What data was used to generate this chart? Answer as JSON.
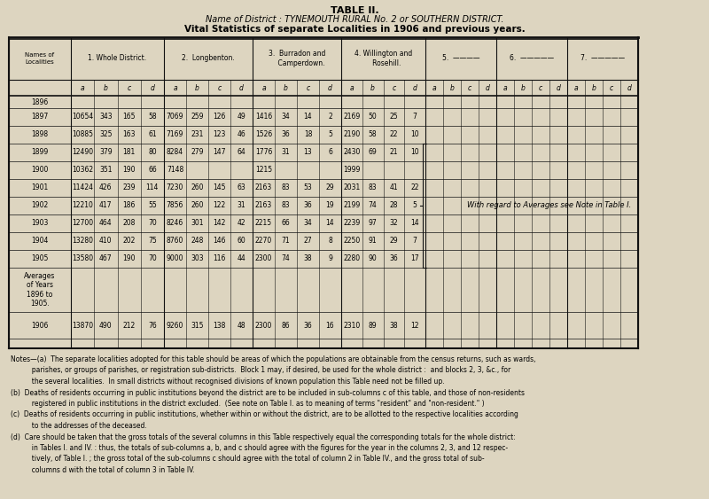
{
  "title": "TABLE II.",
  "subtitle_italic": "Name of District : TYNEMOUTH RURAL No. 2 or SOUTHERN DISTRICT.",
  "subtitle_bold": "Vital Statistics of separate Localities in 1906 and previous years.",
  "bg_color": "#ddd5c0",
  "data": {
    "1896": {
      "whole": [
        "",
        "",
        "",
        ""
      ],
      "longbenton": [
        "",
        "",
        "",
        ""
      ],
      "burradon": [
        "",
        "",
        "",
        ""
      ],
      "willington": [
        "",
        "",
        "",
        ""
      ]
    },
    "1897": {
      "whole": [
        "10654",
        "343",
        "165",
        "58"
      ],
      "longbenton": [
        "7069",
        "259",
        "126",
        "49"
      ],
      "burradon": [
        "1416",
        "34",
        "14",
        "2"
      ],
      "willington": [
        "2169",
        "50",
        "25",
        "7"
      ]
    },
    "1898": {
      "whole": [
        "10885",
        "325",
        "163",
        "61"
      ],
      "longbenton": [
        "7169",
        "231",
        "123",
        "46"
      ],
      "burradon": [
        "1526",
        "36",
        "18",
        "5"
      ],
      "willington": [
        "2190",
        "58",
        "22",
        "10"
      ]
    },
    "1899": {
      "whole": [
        "12490",
        "379",
        "181",
        "80"
      ],
      "longbenton": [
        "8284",
        "279",
        "147",
        "64"
      ],
      "burradon": [
        "1776",
        "31",
        "13",
        "6"
      ],
      "willington": [
        "2430",
        "69",
        "21",
        "10"
      ]
    },
    "1900": {
      "whole": [
        "10362",
        "351",
        "190",
        "66"
      ],
      "longbenton": [
        "7148",
        "",
        "",
        ""
      ],
      "burradon": [
        "1215",
        "",
        "",
        ""
      ],
      "willington": [
        "1999",
        "",
        "",
        ""
      ]
    },
    "1901": {
      "whole": [
        "11424",
        "426",
        "239",
        "114"
      ],
      "longbenton": [
        "7230",
        "260",
        "145",
        "63"
      ],
      "burradon": [
        "2163",
        "83",
        "53",
        "29"
      ],
      "willington": [
        "2031",
        "83",
        "41",
        "22"
      ]
    },
    "1902": {
      "whole": [
        "12210",
        "417",
        "186",
        "55"
      ],
      "longbenton": [
        "7856",
        "260",
        "122",
        "31"
      ],
      "burradon": [
        "2163",
        "83",
        "36",
        "19"
      ],
      "willington": [
        "2199",
        "74",
        "28",
        "5"
      ]
    },
    "1903": {
      "whole": [
        "12700",
        "464",
        "208",
        "70"
      ],
      "longbenton": [
        "8246",
        "301",
        "142",
        "42"
      ],
      "burradon": [
        "2215",
        "66",
        "34",
        "14"
      ],
      "willington": [
        "2239",
        "97",
        "32",
        "14"
      ]
    },
    "1904": {
      "whole": [
        "13280",
        "410",
        "202",
        "75"
      ],
      "longbenton": [
        "8760",
        "248",
        "146",
        "60"
      ],
      "burradon": [
        "2270",
        "71",
        "27",
        "8"
      ],
      "willington": [
        "2250",
        "91",
        "29",
        "7"
      ]
    },
    "1905": {
      "whole": [
        "13580",
        "467",
        "190",
        "70"
      ],
      "longbenton": [
        "9000",
        "303",
        "116",
        "44"
      ],
      "burradon": [
        "2300",
        "74",
        "38",
        "9"
      ],
      "willington": [
        "2280",
        "90",
        "36",
        "17"
      ]
    },
    "averages": {
      "whole": [
        "",
        "",
        "",
        ""
      ],
      "longbenton": [
        "",
        "",
        "",
        ""
      ],
      "burradon": [
        "",
        "",
        "",
        ""
      ],
      "willington": [
        "",
        "",
        "",
        ""
      ]
    },
    "1906": {
      "whole": [
        "13870",
        "490",
        "212",
        "76"
      ],
      "longbenton": [
        "9260",
        "315",
        "138",
        "48"
      ],
      "burradon": [
        "2300",
        "86",
        "36",
        "16"
      ],
      "willington": [
        "2310",
        "89",
        "38",
        "12"
      ]
    }
  },
  "note_text": "With regard to Averages see Note in Table I.",
  "notes_lines": [
    [
      "Notes—(a)",
      "  The separate localities adopted for this table should be areas of which the populations are obtainable from the census returns, such as wards,"
    ],
    [
      "",
      "          parishes, or groups of parishes, or registration sub-districts.  Block 1 may, if desired, be used for the whole district :  and blocks 2, 3, &c., for"
    ],
    [
      "",
      "          the several localities.  In small districts without recognised divisions of known population this Table need not be filled up."
    ],
    [
      "(b)",
      "  Deaths of residents occurring in public institutions beyond the district are to be included in sub-columns c of this table, and those of non-residents"
    ],
    [
      "",
      "          registered in public institutions in the district excluded.  (See note on Table I. as to meaning of terms \"resident\" and \"non-resident.\" )"
    ],
    [
      "(c)",
      "  Deaths of residents occurring in public institutions, whether within or without the district, are to be allotted to the respective localities according"
    ],
    [
      "",
      "          to the addresses of the deceased."
    ],
    [
      "(d)",
      "  Care should be taken that the gross totals of the several columns in this Table respectively equal the corresponding totals for the whole district:"
    ],
    [
      "",
      "          in Tables I. and IV. : thus, the totals of sub-columns a, b, and c should agree with the figures for the year in the columns 2, 3, and 12 respec-"
    ],
    [
      "",
      "          tively, of Table I. ; the gross total of the sub-columns c should agree with the total of column 2 in Table IV., and the gross total of sub-"
    ],
    [
      "",
      "          columns d with the total of column 3 in Table IV."
    ]
  ]
}
